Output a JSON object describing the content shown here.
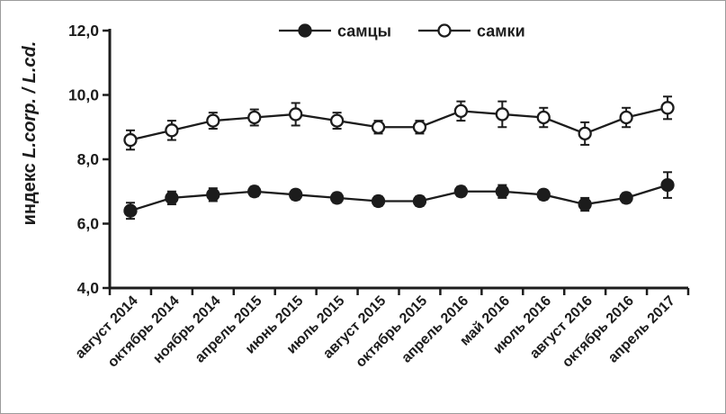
{
  "figure": {
    "background": "#ffffff",
    "border_color": "#9b9b9b",
    "ink_color": "#1c1c1c"
  },
  "chart_data": {
    "type": "line",
    "title": "",
    "xlabel": "",
    "ylabel": {
      "prefix": "индекс ",
      "italic": "L.corp. / L.cd."
    },
    "ylim": [
      4.0,
      12.0
    ],
    "ytick_step": 2.0,
    "yticks": [
      {
        "value": 4.0,
        "label": "4,0"
      },
      {
        "value": 6.0,
        "label": "6,0"
      },
      {
        "value": 8.0,
        "label": "8,0"
      },
      {
        "value": 10.0,
        "label": "10,0"
      },
      {
        "value": 12.0,
        "label": "12,0"
      }
    ],
    "grid": false,
    "legend_position": "top-center",
    "error_bars": true,
    "categories": [
      "август 2014",
      "октябрь 2014",
      "ноябрь 2014",
      "апрель 2015",
      "июнь 2015",
      "июль 2015",
      "август 2015",
      "октябрь 2015",
      "апрель 2016",
      "май 2016",
      "июль 2016",
      "август 2016",
      "октябрь 2016",
      "апрель 2017"
    ],
    "series": [
      {
        "name": "самцы",
        "marker": "filled-circle",
        "color": "#1c1c1c",
        "values": [
          6.4,
          6.8,
          6.9,
          7.0,
          6.9,
          6.8,
          6.7,
          6.7,
          7.0,
          7.0,
          6.9,
          6.6,
          6.8,
          7.2
        ],
        "errors": [
          0.25,
          0.2,
          0.2,
          0.15,
          0.15,
          0.15,
          0.15,
          0.15,
          0.15,
          0.2,
          0.15,
          0.2,
          0.15,
          0.4
        ]
      },
      {
        "name": "самки",
        "marker": "open-circle",
        "color": "#1c1c1c",
        "values": [
          8.6,
          8.9,
          9.2,
          9.3,
          9.4,
          9.2,
          9.0,
          9.0,
          9.5,
          9.4,
          9.3,
          8.8,
          9.3,
          9.6
        ],
        "errors": [
          0.3,
          0.3,
          0.25,
          0.25,
          0.35,
          0.25,
          0.2,
          0.2,
          0.3,
          0.4,
          0.3,
          0.35,
          0.3,
          0.35
        ]
      }
    ]
  }
}
